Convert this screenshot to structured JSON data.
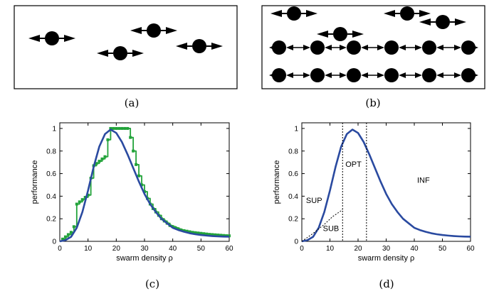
{
  "panels": {
    "a": {
      "caption": "(a)"
    },
    "b": {
      "caption": "(b)"
    },
    "c": {
      "caption": "(c)"
    },
    "d": {
      "caption": "(d)"
    }
  },
  "colors": {
    "green": "#22a33a",
    "blue": "#2a4aa0",
    "black": "#000000"
  },
  "chart_data": [
    {
      "type": "line",
      "panel": "c",
      "xlabel": "swarm density ρ",
      "ylabel": "performance",
      "xlim": [
        0,
        60
      ],
      "ylim": [
        0,
        1.05
      ],
      "xticks": [
        "0",
        "10",
        "20",
        "30",
        "40",
        "50",
        "60"
      ],
      "yticks": [
        "0",
        "0.2",
        "0.4",
        "0.6",
        "0.8",
        "1"
      ],
      "series": [
        {
          "color": "green",
          "marker": "square",
          "step": true,
          "x": [
            1,
            2,
            3,
            4,
            5,
            6,
            7,
            8,
            9,
            10,
            11,
            12,
            13,
            14,
            15,
            16,
            17,
            18,
            19,
            20,
            21,
            22,
            23,
            24,
            25,
            26,
            27,
            28,
            29,
            30,
            31,
            32,
            33,
            34,
            35,
            36,
            37,
            38,
            39,
            40,
            41,
            42,
            43,
            44,
            45,
            46,
            47,
            48,
            49,
            50,
            51,
            52,
            53,
            54,
            55,
            56,
            57,
            58,
            59,
            60
          ],
          "y": [
            0.02,
            0.04,
            0.06,
            0.08,
            0.13,
            0.33,
            0.35,
            0.37,
            0.39,
            0.41,
            0.56,
            0.67,
            0.69,
            0.71,
            0.73,
            0.75,
            0.9,
            1.0,
            1.0,
            1.0,
            1.0,
            1.0,
            1.0,
            1.0,
            0.92,
            0.8,
            0.68,
            0.58,
            0.5,
            0.44,
            0.38,
            0.33,
            0.29,
            0.26,
            0.23,
            0.2,
            0.18,
            0.16,
            0.14,
            0.13,
            0.12,
            0.11,
            0.1,
            0.095,
            0.09,
            0.085,
            0.08,
            0.077,
            0.074,
            0.071,
            0.068,
            0.065,
            0.062,
            0.06,
            0.058,
            0.056,
            0.054,
            0.052,
            0.05,
            0.049
          ]
        },
        {
          "color": "blue",
          "marker": "none",
          "x": [
            0,
            2,
            4,
            6,
            8,
            10,
            12,
            14,
            16,
            18,
            20,
            22,
            24,
            26,
            28,
            30,
            32,
            34,
            36,
            38,
            40,
            42,
            44,
            46,
            48,
            50,
            52,
            54,
            56,
            58,
            60
          ],
          "y": [
            0,
            0.01,
            0.04,
            0.12,
            0.26,
            0.45,
            0.66,
            0.84,
            0.95,
            0.99,
            0.96,
            0.88,
            0.77,
            0.65,
            0.53,
            0.42,
            0.33,
            0.26,
            0.2,
            0.16,
            0.12,
            0.1,
            0.085,
            0.072,
            0.063,
            0.056,
            0.051,
            0.047,
            0.044,
            0.042,
            0.041
          ]
        }
      ]
    },
    {
      "type": "line",
      "panel": "d",
      "xlabel": "swarm density ρ",
      "ylabel": "performance",
      "xlim": [
        0,
        60
      ],
      "ylim": [
        0,
        1.05
      ],
      "xticks": [
        "0",
        "10",
        "20",
        "30",
        "40",
        "50",
        "60"
      ],
      "yticks": [
        "0",
        "0.2",
        "0.4",
        "0.6",
        "0.8",
        "1"
      ],
      "series": [
        {
          "color": "blue",
          "x": [
            0,
            2,
            4,
            6,
            8,
            10,
            12,
            14,
            16,
            18,
            20,
            22,
            24,
            26,
            28,
            30,
            32,
            34,
            36,
            38,
            40,
            42,
            44,
            46,
            48,
            50,
            52,
            54,
            56,
            58,
            60
          ],
          "y": [
            0,
            0.01,
            0.04,
            0.12,
            0.26,
            0.45,
            0.66,
            0.84,
            0.95,
            0.99,
            0.96,
            0.88,
            0.77,
            0.65,
            0.53,
            0.42,
            0.33,
            0.26,
            0.2,
            0.16,
            0.12,
            0.1,
            0.085,
            0.072,
            0.063,
            0.056,
            0.051,
            0.047,
            0.044,
            0.042,
            0.041
          ]
        },
        {
          "color": "black",
          "dashed": true,
          "x": [
            0,
            4,
            8,
            11,
            14.5
          ],
          "y": [
            0,
            0.07,
            0.15,
            0.22,
            0.28
          ]
        }
      ],
      "vlines": [
        14.5,
        23
      ],
      "region_labels": [
        {
          "text": "SUP",
          "x": 1.5,
          "y": 0.34
        },
        {
          "text": "SUB",
          "x": 7.5,
          "y": 0.09
        },
        {
          "text": "OPT",
          "x": 15.5,
          "y": 0.66
        },
        {
          "text": "INF",
          "x": 41,
          "y": 0.52
        }
      ]
    }
  ]
}
